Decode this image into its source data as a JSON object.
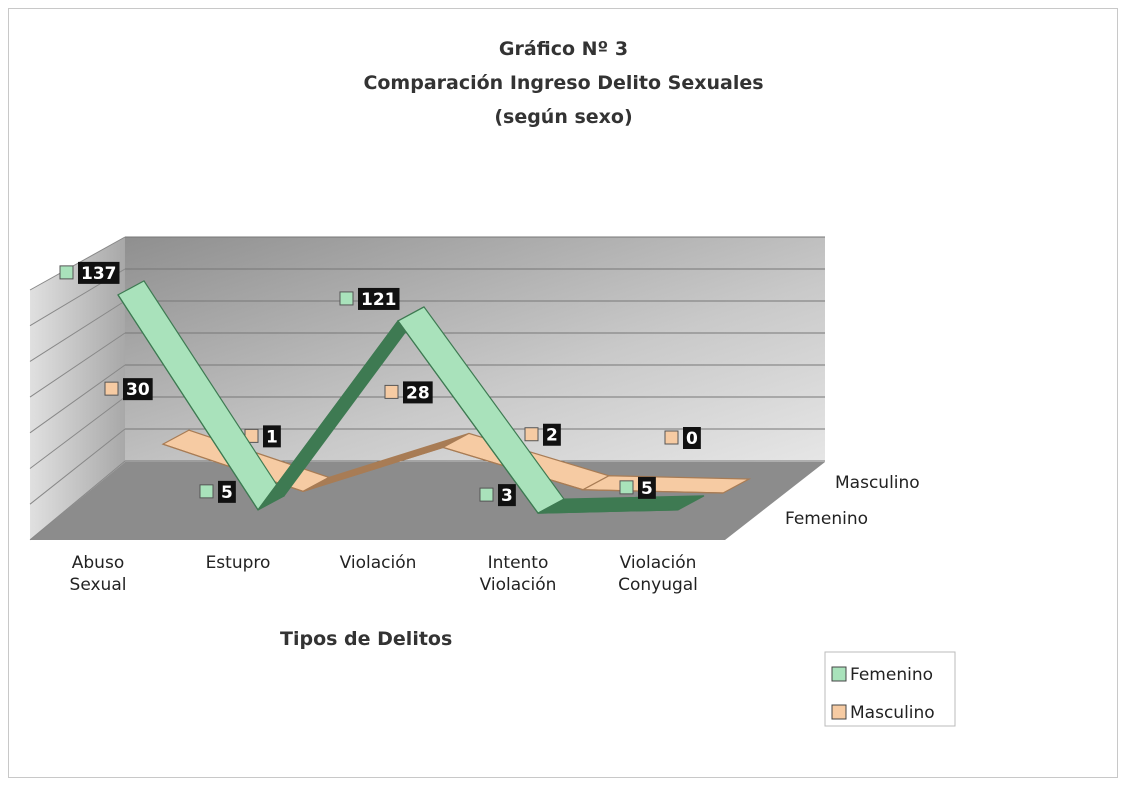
{
  "chart_data": {
    "type": "line3d",
    "title": [
      "Gráfico Nº 3",
      "Comparación Ingreso Delito Sexuales",
      "(según sexo)"
    ],
    "x_label": "Tipos de Delitos",
    "categories": [
      "Abuso Sexual",
      "Estupro",
      "Violación",
      "Intento Violación",
      "Violación Conyugal"
    ],
    "series": [
      {
        "name": "Femenino",
        "color": "#a9e2bb",
        "values": [
          137,
          5,
          121,
          3,
          5
        ]
      },
      {
        "name": "Masculino",
        "color": "#f6cba3",
        "values": [
          30,
          1,
          28,
          2,
          0
        ]
      }
    ],
    "ylim": [
      0,
      140
    ],
    "legend": "bottom-right"
  }
}
